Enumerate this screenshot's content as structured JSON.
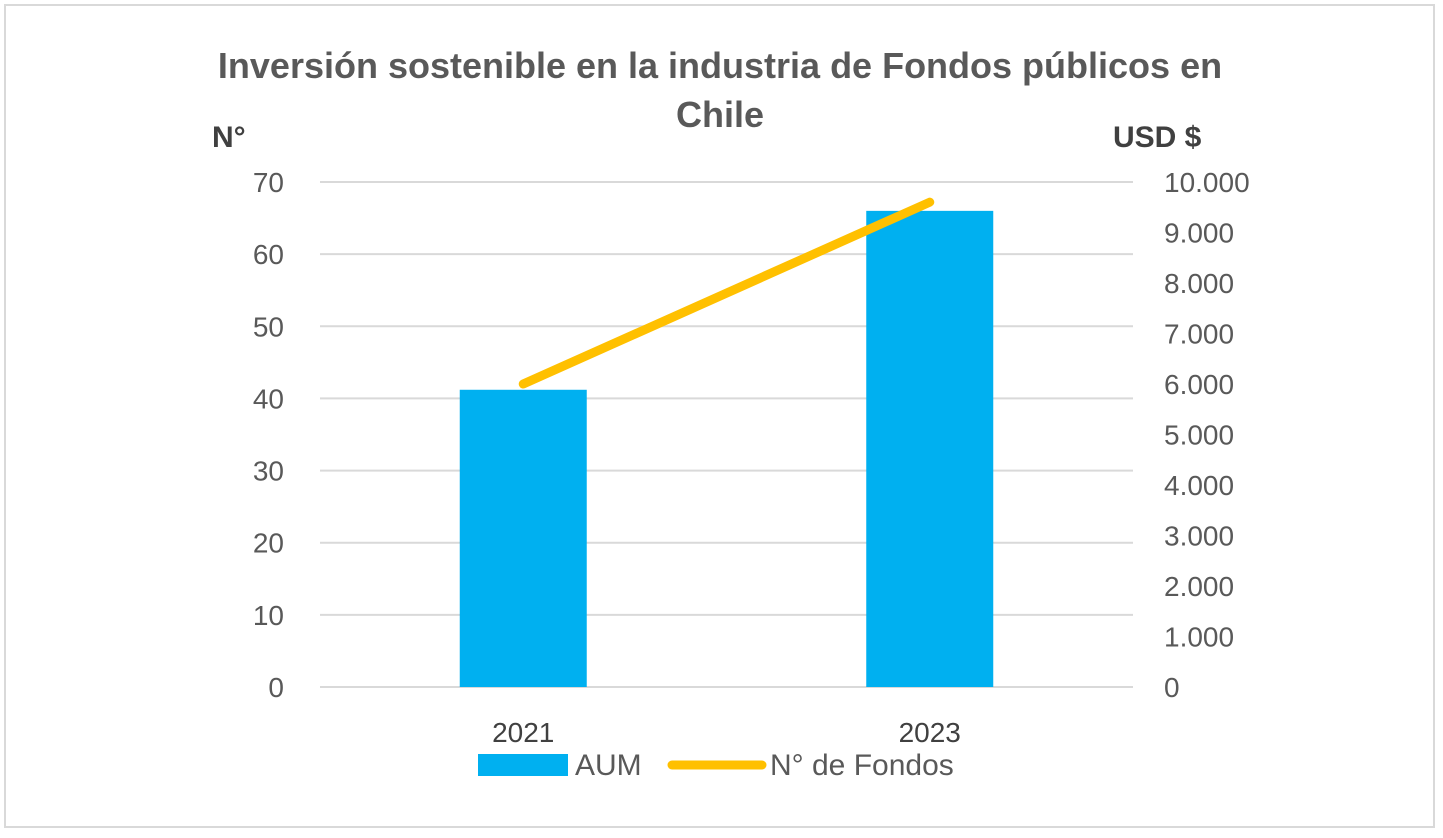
{
  "chart_data": {
    "type": "bar+line",
    "title_lines": [
      "Inversión sostenible en la industria de Fondos públicos en",
      "Chile"
    ],
    "categories": [
      "2021",
      "2023"
    ],
    "left_axis": {
      "title": "N°",
      "range": [
        0,
        70
      ],
      "ticks": [
        "70",
        "60",
        "50",
        "40",
        "30",
        "20",
        "10",
        "0"
      ]
    },
    "right_axis": {
      "title": "USD $",
      "range": [
        0,
        10000
      ],
      "ticks": [
        "10.000",
        "9.000",
        "8.000",
        "7.000",
        "6.000",
        "5.000",
        "4.000",
        "3.000",
        "2.000",
        "1.000",
        "0"
      ]
    },
    "series": [
      {
        "name": "AUM",
        "kind": "bar",
        "axis": "left",
        "values": [
          41.2,
          66
        ],
        "color": "#00b0f0"
      },
      {
        "name": "N° de Fondos",
        "kind": "line",
        "axis": "right",
        "values": [
          6000,
          9600
        ],
        "color": "#ffc000"
      }
    ],
    "grid": true,
    "legend_position": "bottom"
  }
}
